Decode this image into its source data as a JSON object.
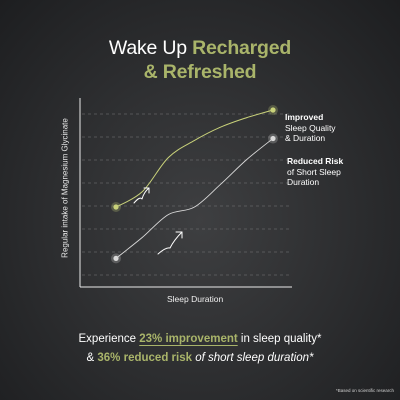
{
  "header": {
    "title_plain": "Wake Up",
    "title_highlight": "Recharged",
    "title_line2": "& Refreshed"
  },
  "chart_data": {
    "type": "line",
    "title": "Wake Up Recharged & Refreshed",
    "xlabel": "Sleep Duration",
    "ylabel": "Regular intake of Magnesium Glycinate",
    "xlim": [
      0,
      100
    ],
    "ylim": [
      0,
      100
    ],
    "grid": true,
    "legend": "right",
    "series": [
      {
        "name": "Improved Sleep Quality & Duration",
        "color": "#c9d27a",
        "x": [
          0,
          15,
          30,
          45,
          60,
          75,
          90
        ],
        "y": [
          31,
          39,
          57,
          66,
          73,
          78,
          82
        ]
      },
      {
        "name": "Reduced Risk of Short Sleep Duration",
        "color": "#d9d9d9",
        "x": [
          0,
          15,
          30,
          45,
          60,
          75,
          90
        ],
        "y": [
          4,
          15,
          27,
          31,
          43,
          56,
          67
        ]
      }
    ]
  },
  "legend": {
    "s1_bold": "Improved",
    "s1_line2": "Sleep Quality",
    "s1_line3": "& Duration",
    "s2_bold": "Reduced Risk",
    "s2_line2": "of Short Sleep",
    "s2_line3": "Duration"
  },
  "footer": {
    "l1_pre": "Experience",
    "l1_hl": "23% improvement",
    "l1_post": "in sleep quality*",
    "l2_pre": "&",
    "l2_hl": "36% reduced risk",
    "l2_post": "of short sleep duration*",
    "note": "*Based on scientific research"
  },
  "colors": {
    "accent": "#a9b46a",
    "series1": "#c9d27a",
    "series2": "#d9d9d9"
  }
}
